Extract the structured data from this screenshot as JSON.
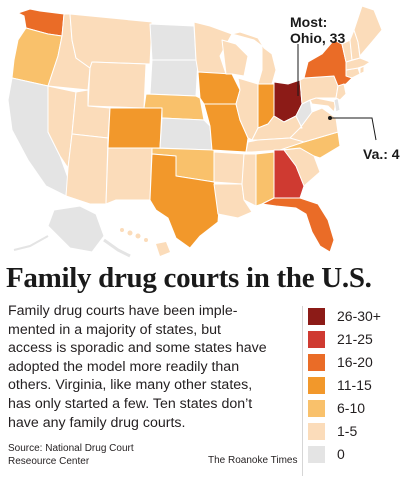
{
  "map": {
    "callout_most_line1": "Most:",
    "callout_most_line2": "Ohio, 33",
    "callout_va": "Va.: 4"
  },
  "title": "Family drug courts in the U.S.",
  "body": "Family drug courts have been implemented in a majority of states, but access is sporadic and some states have adopted the model more readily than others. Virginia, like many other states, has only started a few. Ten states don’t have any family drug courts.",
  "body_lines": [
    "Family drug courts have been imple-",
    "mented in a majority of states, but",
    "access is sporadic and some states have",
    "adopted the model more readily than",
    "others. Virginia, like many other states,",
    "has only started a few. Ten states don’t",
    "have any family drug courts."
  ],
  "source": {
    "line1": "Source: National Drug Court",
    "line2": "Reseource Center"
  },
  "credit": "The Roanoke Times",
  "legend": [
    {
      "label": "26-30+",
      "color": "#8c1b17"
    },
    {
      "label": "21-25",
      "color": "#cf3a31"
    },
    {
      "label": "16-20",
      "color": "#ea6c27"
    },
    {
      "label": "11-15",
      "color": "#f2982b"
    },
    {
      "label": "6-10",
      "color": "#f9c16b"
    },
    {
      "label": "1-5",
      "color": "#fbdcba"
    },
    {
      "label": "0",
      "color": "#e4e4e4"
    }
  ]
}
